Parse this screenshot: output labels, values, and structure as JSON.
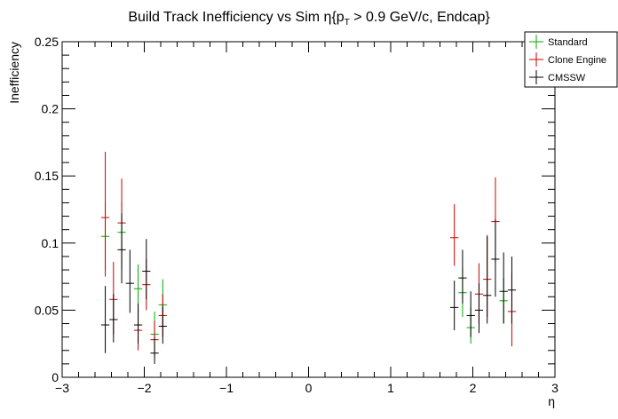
{
  "chart_data": {
    "type": "scatter",
    "title_main": "Build Track Inefficiency vs Sim η{p",
    "title_sub": "T",
    "title_rest": " > 0.9 GeV/c, Endcap}",
    "xlabel": "η",
    "ylabel": "Inefficiency",
    "xlim": [
      -3,
      3
    ],
    "ylim": [
      0,
      0.25
    ],
    "xticks": [
      -3,
      -2,
      -1,
      0,
      1,
      2,
      3
    ],
    "xtick_labels": [
      "−3",
      "−2",
      "−1",
      "0",
      "1",
      "2",
      "3"
    ],
    "yticks": [
      0,
      0.05,
      0.1,
      0.15,
      0.2,
      0.25
    ],
    "ytick_labels": [
      "0",
      "0.05",
      "0.1",
      "0.15",
      "0.2",
      "0.25"
    ],
    "grid": false,
    "legend_position": "top-right",
    "series": [
      {
        "name": "Standard",
        "color": "#00aa00",
        "points": [
          {
            "x": -2.475,
            "y": 0.105,
            "ylo": 0.08,
            "yhi": 0.13
          },
          {
            "x": -2.275,
            "y": 0.108,
            "ylo": 0.085,
            "yhi": 0.131
          },
          {
            "x": -2.075,
            "y": 0.066,
            "ylo": 0.048,
            "yhi": 0.084
          },
          {
            "x": -1.875,
            "y": 0.032,
            "ylo": 0.018,
            "yhi": 0.049
          },
          {
            "x": -1.775,
            "y": 0.054,
            "ylo": 0.037,
            "yhi": 0.073
          },
          {
            "x": 1.875,
            "y": 0.063,
            "ylo": 0.045,
            "yhi": 0.081
          },
          {
            "x": 1.975,
            "y": 0.037,
            "ylo": 0.025,
            "yhi": 0.052
          },
          {
            "x": 2.375,
            "y": 0.057,
            "ylo": 0.04,
            "yhi": 0.074
          }
        ]
      },
      {
        "name": "Clone Engine",
        "color": "#cc0000",
        "points": [
          {
            "x": -2.475,
            "y": 0.119,
            "ylo": 0.075,
            "yhi": 0.168
          },
          {
            "x": -2.375,
            "y": 0.058,
            "ylo": 0.032,
            "yhi": 0.086
          },
          {
            "x": -2.275,
            "y": 0.115,
            "ylo": 0.08,
            "yhi": 0.148
          },
          {
            "x": -2.075,
            "y": 0.035,
            "ylo": 0.02,
            "yhi": 0.05
          },
          {
            "x": -1.975,
            "y": 0.069,
            "ylo": 0.05,
            "yhi": 0.088
          },
          {
            "x": -1.875,
            "y": 0.028,
            "ylo": 0.015,
            "yhi": 0.042
          },
          {
            "x": -1.775,
            "y": 0.046,
            "ylo": 0.03,
            "yhi": 0.062
          },
          {
            "x": 1.775,
            "y": 0.104,
            "ylo": 0.083,
            "yhi": 0.129
          },
          {
            "x": 2.075,
            "y": 0.062,
            "ylo": 0.04,
            "yhi": 0.085
          },
          {
            "x": 2.175,
            "y": 0.073,
            "ylo": 0.045,
            "yhi": 0.106
          },
          {
            "x": 2.275,
            "y": 0.116,
            "ylo": 0.085,
            "yhi": 0.149
          },
          {
            "x": 2.475,
            "y": 0.049,
            "ylo": 0.023,
            "yhi": 0.078
          }
        ]
      },
      {
        "name": "CMSSW",
        "color": "#000000",
        "points": [
          {
            "x": -2.475,
            "y": 0.039,
            "ylo": 0.018,
            "yhi": 0.068
          },
          {
            "x": -2.375,
            "y": 0.043,
            "ylo": 0.026,
            "yhi": 0.062
          },
          {
            "x": -2.275,
            "y": 0.095,
            "ylo": 0.07,
            "yhi": 0.122
          },
          {
            "x": -2.175,
            "y": 0.07,
            "ylo": 0.048,
            "yhi": 0.095
          },
          {
            "x": -2.075,
            "y": 0.039,
            "ylo": 0.025,
            "yhi": 0.055
          },
          {
            "x": -1.975,
            "y": 0.079,
            "ylo": 0.058,
            "yhi": 0.103
          },
          {
            "x": -1.875,
            "y": 0.018,
            "ylo": 0.01,
            "yhi": 0.03
          },
          {
            "x": -1.775,
            "y": 0.038,
            "ylo": 0.025,
            "yhi": 0.053
          },
          {
            "x": 1.775,
            "y": 0.052,
            "ylo": 0.035,
            "yhi": 0.072
          },
          {
            "x": 1.875,
            "y": 0.074,
            "ylo": 0.055,
            "yhi": 0.095
          },
          {
            "x": 1.975,
            "y": 0.046,
            "ylo": 0.03,
            "yhi": 0.064
          },
          {
            "x": 2.075,
            "y": 0.05,
            "ylo": 0.033,
            "yhi": 0.07
          },
          {
            "x": 2.175,
            "y": 0.061,
            "ylo": 0.04,
            "yhi": 0.105
          },
          {
            "x": 2.275,
            "y": 0.088,
            "ylo": 0.06,
            "yhi": 0.118
          },
          {
            "x": 2.375,
            "y": 0.064,
            "ylo": 0.04,
            "yhi": 0.093
          },
          {
            "x": 2.475,
            "y": 0.065,
            "ylo": 0.04,
            "yhi": 0.09
          }
        ]
      }
    ]
  }
}
